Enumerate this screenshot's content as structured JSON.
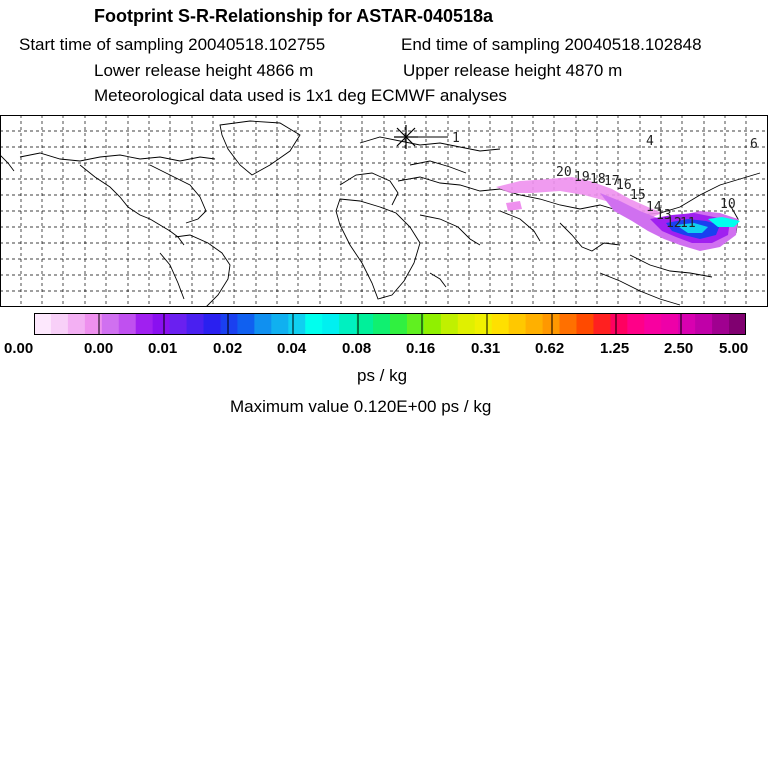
{
  "header": {
    "title": "Footprint S-R-Relationship for ASTAR-040518a",
    "start_time": "Start time of sampling 20040518.102755",
    "end_time": "End time of sampling 20040518.102848",
    "lower_height": "Lower release height 4866 m",
    "upper_height": "Upper release height 4870 m",
    "met_data": "Meteorological data used is 1x1 deg ECMWF analyses"
  },
  "map": {
    "trajectory_labels": [
      "1",
      "4",
      "6",
      "20",
      "19",
      "18",
      "17",
      "16",
      "15",
      "14",
      "13",
      "12",
      "11",
      "10"
    ],
    "receptor_marker": "star-icon"
  },
  "colorbar": {
    "tick_labels": [
      "0.00",
      "0.00",
      "0.01",
      "0.02",
      "0.04",
      "0.08",
      "0.16",
      "0.31",
      "0.62",
      "1.25",
      "2.50",
      "5.00"
    ],
    "colors": [
      "#fde8fd",
      "#f8d0f8",
      "#f3b0f3",
      "#ee90ee",
      "#d070f0",
      "#c050f0",
      "#a020f0",
      "#8a10f0",
      "#6a20f0",
      "#4a20f0",
      "#2a20f0",
      "#1a40f0",
      "#1060f0",
      "#1090f0",
      "#10b0f0",
      "#10d0f0",
      "#00ffee",
      "#00f0f0",
      "#00f0c0",
      "#00f09a",
      "#10f070",
      "#30f040",
      "#60f020",
      "#90f000",
      "#c0f000",
      "#e0f000",
      "#f0f000",
      "#ffe000",
      "#ffc800",
      "#ffb000",
      "#ff9800",
      "#ff7000",
      "#ff4a00",
      "#ff2020",
      "#ff0060",
      "#ff0088",
      "#f800a0",
      "#ee00a8",
      "#d800b0",
      "#c000a8",
      "#a00090",
      "#800070"
    ],
    "unit": "ps / kg",
    "max_value": "Maximum value  0.120E+00 ps / kg"
  }
}
